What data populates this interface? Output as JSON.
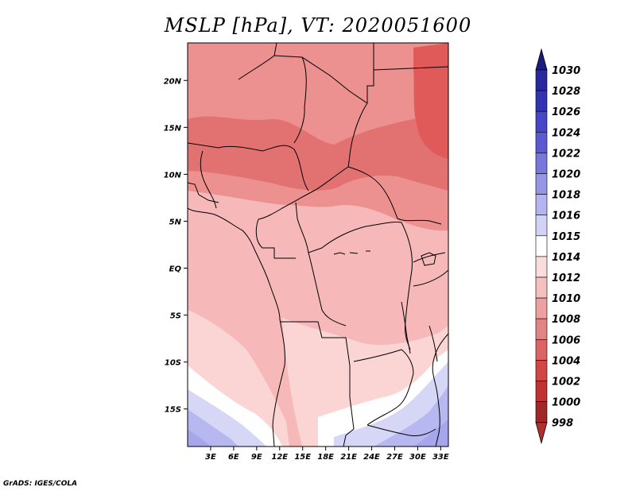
{
  "title": "MSLP [hPa], VT: 2020051600",
  "credit": "GrADS: IGES/COLA",
  "map": {
    "lon_range": [
      0,
      34
    ],
    "lat_range": [
      -19,
      24
    ],
    "lon_ticks": [
      {
        "value": 3,
        "label": "3E"
      },
      {
        "value": 6,
        "label": "6E"
      },
      {
        "value": 9,
        "label": "9E"
      },
      {
        "value": 12,
        "label": "12E"
      },
      {
        "value": 15,
        "label": "15E"
      },
      {
        "value": 18,
        "label": "18E"
      },
      {
        "value": 21,
        "label": "21E"
      },
      {
        "value": 24,
        "label": "24E"
      },
      {
        "value": 27,
        "label": "27E"
      },
      {
        "value": 30,
        "label": "30E"
      },
      {
        "value": 33,
        "label": "33E"
      }
    ],
    "lat_ticks": [
      {
        "value": 20,
        "label": "20N"
      },
      {
        "value": 15,
        "label": "15N"
      },
      {
        "value": 10,
        "label": "10N"
      },
      {
        "value": 5,
        "label": "5N"
      },
      {
        "value": 0,
        "label": "EQ"
      },
      {
        "value": -5,
        "label": "5S"
      },
      {
        "value": -10,
        "label": "10S"
      },
      {
        "value": -15,
        "label": "15S"
      }
    ]
  },
  "colorbar": {
    "levels": [
      {
        "label": "1030",
        "color": "#1e1e8c"
      },
      {
        "label": "1028",
        "color": "#2828a0"
      },
      {
        "label": "1026",
        "color": "#3232b4"
      },
      {
        "label": "1024",
        "color": "#4646c8"
      },
      {
        "label": "1022",
        "color": "#5a5ad2"
      },
      {
        "label": "1020",
        "color": "#7878dc"
      },
      {
        "label": "1018",
        "color": "#9696e6"
      },
      {
        "label": "1016",
        "color": "#b4b4f0"
      },
      {
        "label": "1015",
        "color": "#d2d2f5"
      },
      {
        "label": "1014",
        "color": "#ffffff"
      },
      {
        "label": "1012",
        "color": "#fadcdc"
      },
      {
        "label": "1010",
        "color": "#f5c0c0"
      },
      {
        "label": "1008",
        "color": "#eda0a0"
      },
      {
        "label": "1006",
        "color": "#e38484"
      },
      {
        "label": "1004",
        "color": "#dc6464"
      },
      {
        "label": "1002",
        "color": "#d24646"
      },
      {
        "label": "1000",
        "color": "#be3232"
      },
      {
        "label": "998",
        "color": "#a02828"
      }
    ],
    "top_arrow_color": "#1a1a80",
    "bottom_arrow_color": "#b03030"
  },
  "colors": {
    "lowest": "#e05a5a",
    "low": "#e27272",
    "mid": "#ec9090",
    "base": "#f6b8b8",
    "light": "#fbd4d4",
    "white": "#ffffff",
    "lavender": "#d6d6f6",
    "blue": "#b8b8f0",
    "deep_blue": "#a6a6ec"
  }
}
